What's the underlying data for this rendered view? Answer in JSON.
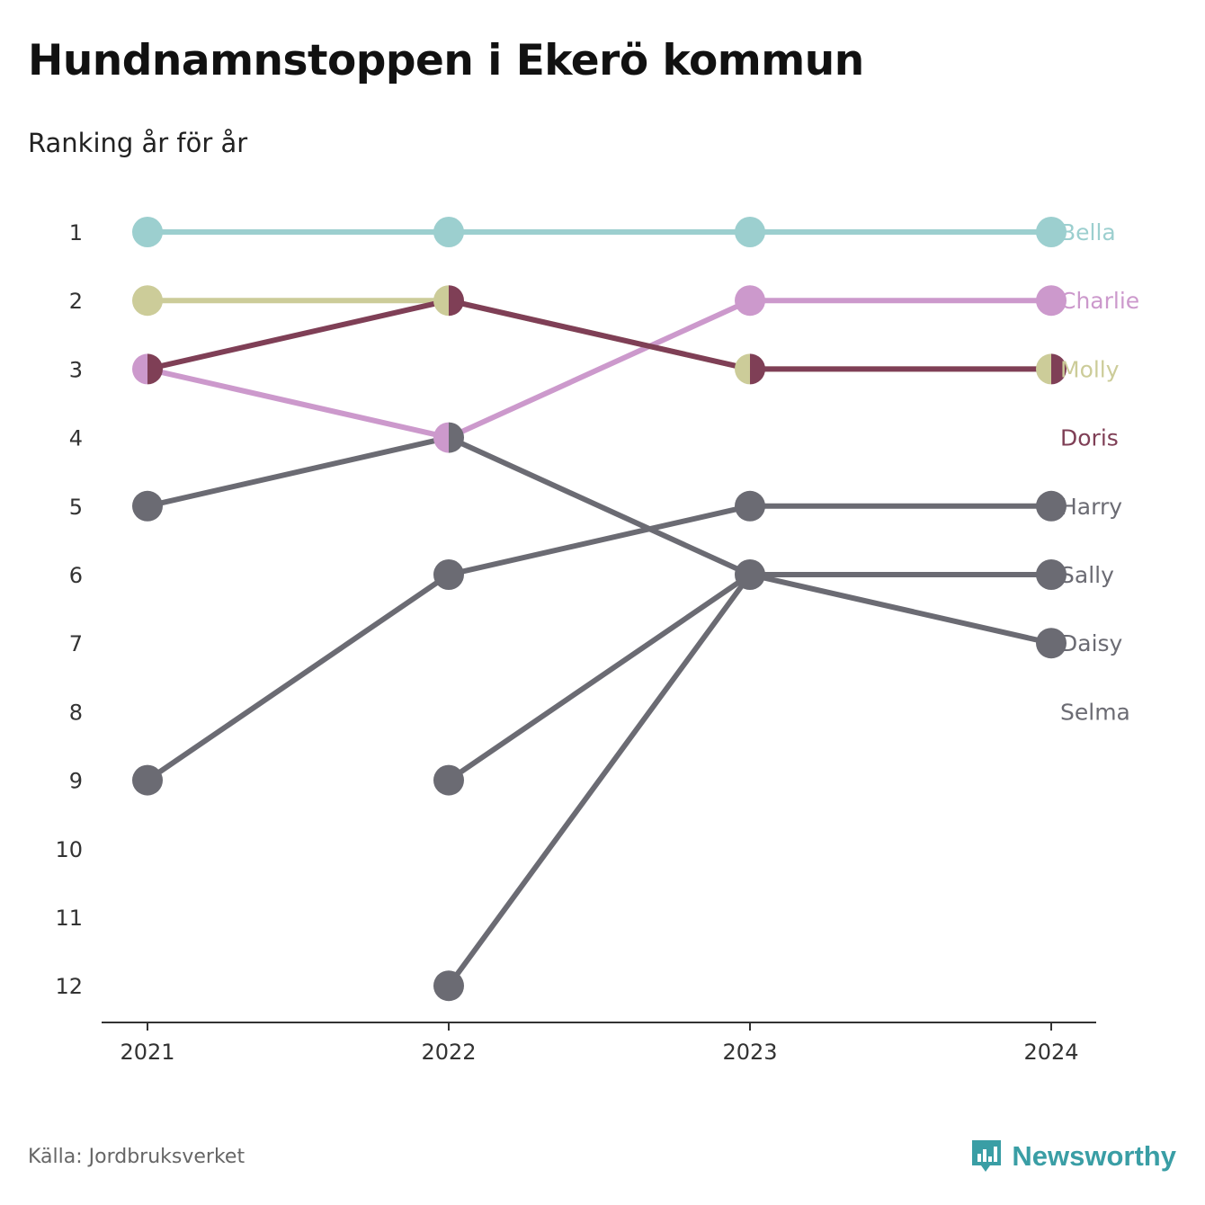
{
  "title": "Hundnamnstoppen i Ekerö kommun",
  "subtitle": "Ranking år för år",
  "source": "Källa: Jordbruksverket",
  "brand": {
    "name": "Newsworthy",
    "icon": "newsworthy-logo-icon",
    "color": "#3a9ea5"
  },
  "chart_data": {
    "type": "line",
    "subtype": "bump",
    "x": [
      "2021",
      "2022",
      "2023",
      "2024"
    ],
    "y_ticks": [
      "1",
      "2",
      "3",
      "4",
      "5",
      "6",
      "7",
      "8",
      "9",
      "10",
      "11",
      "12"
    ],
    "ylim": [
      1,
      12
    ],
    "y_reversed": true,
    "grid": false,
    "legend": "right, labels at line ends",
    "series": [
      {
        "name": "Bella",
        "color": "#9ccfcf",
        "values": [
          1,
          1,
          1,
          1
        ]
      },
      {
        "name": "Charlie",
        "color": "#cc99cc",
        "values": [
          3,
          4,
          2,
          2
        ]
      },
      {
        "name": "Molly",
        "color": "#cccc99",
        "values": [
          2,
          2,
          3,
          3
        ]
      },
      {
        "name": "Doris",
        "color": "#7f3f56",
        "values": [
          3,
          2,
          3,
          3
        ]
      },
      {
        "name": "Harry",
        "color": "#6b6b73",
        "values": [
          5,
          4,
          6,
          7
        ]
      },
      {
        "name": "Sally",
        "color": "#6b6b73",
        "values": [
          9,
          6,
          5,
          5
        ]
      },
      {
        "name": "Daisy",
        "color": "#6b6b73",
        "values": [
          null,
          9,
          6,
          6
        ]
      },
      {
        "name": "Selma",
        "color": "#6b6b73",
        "values": [
          null,
          12,
          6,
          6
        ]
      }
    ],
    "end_labels": [
      {
        "name": "Bella",
        "rank": 1,
        "color": "#9ccfcf"
      },
      {
        "name": "Charlie",
        "rank": 2,
        "color": "#cc99cc"
      },
      {
        "name": "Molly",
        "rank": 3,
        "color": "#cccc99"
      },
      {
        "name": "Doris",
        "rank": 4,
        "color": "#7f3f56"
      },
      {
        "name": "Harry",
        "rank": 5,
        "color": "#6b6b73"
      },
      {
        "name": "Sally",
        "rank": 6,
        "color": "#6b6b73"
      },
      {
        "name": "Daisy",
        "rank": 7,
        "color": "#6b6b73"
      },
      {
        "name": "Selma",
        "rank": 8,
        "color": "#6b6b73"
      }
    ]
  }
}
